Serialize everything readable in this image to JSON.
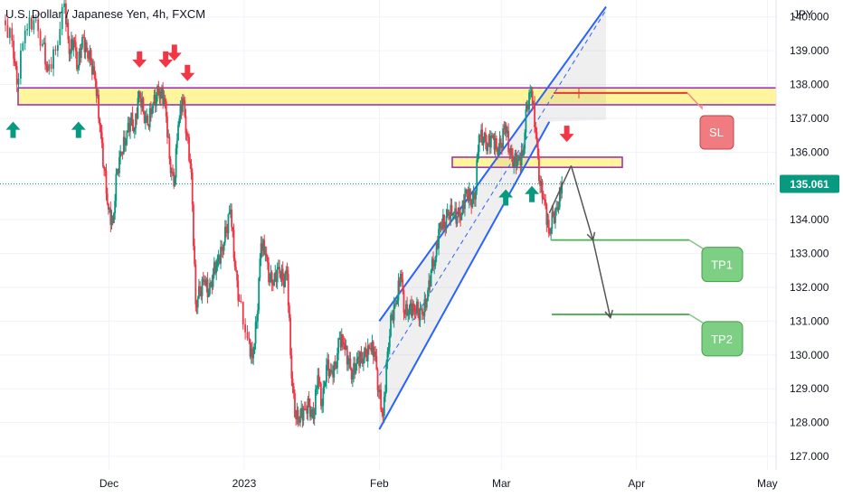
{
  "chart_data": {
    "type": "candlestick",
    "title": "U.S. Dollar / Japanese Yen, 4h, FXCM",
    "y_unit": "JPY",
    "ylim": [
      126.6,
      140.5
    ],
    "yticks": [
      "127.000",
      "128.000",
      "129.000",
      "130.000",
      "131.000",
      "132.000",
      "133.000",
      "134.000",
      "135.000",
      "136.000",
      "137.000",
      "138.000",
      "139.000",
      "140.000"
    ],
    "xlim": [
      "2022-11-06",
      "2023-05-03"
    ],
    "xticks": [
      {
        "date": "2022-12-01",
        "label": "Dec"
      },
      {
        "date": "2023-01-01",
        "label": "2023"
      },
      {
        "date": "2023-02-01",
        "label": "Feb"
      },
      {
        "date": "2023-03-01",
        "label": "Mar"
      },
      {
        "date": "2023-04-01",
        "label": "Apr"
      },
      {
        "date": "2023-05-01",
        "label": "May"
      }
    ],
    "last_price": "135.061",
    "colors": {
      "up": "#089981",
      "down": "#f23645",
      "channel": "#2962ff",
      "zone_fill": "#fff59d",
      "zone_border": "#9c27b0",
      "target": "#4caf50",
      "stop": "#e53935",
      "path": "#555555"
    },
    "price_path": [
      [
        "2022-11-07",
        139.9
      ],
      [
        "2022-11-09",
        139.3
      ],
      [
        "2022-11-10",
        138.0
      ],
      [
        "2022-11-12",
        139.6
      ],
      [
        "2022-11-14",
        139.9
      ],
      [
        "2022-11-16",
        139.2
      ],
      [
        "2022-11-17",
        138.4
      ],
      [
        "2022-11-19",
        139.0
      ],
      [
        "2022-11-21",
        140.4
      ],
      [
        "2022-11-22",
        138.9
      ],
      [
        "2022-11-23",
        139.3
      ],
      [
        "2022-11-24",
        138.5
      ],
      [
        "2022-11-25",
        139.4
      ],
      [
        "2022-11-26",
        139.0
      ],
      [
        "2022-11-27",
        138.7
      ],
      [
        "2022-11-28",
        138.1
      ],
      [
        "2022-11-29",
        136.8
      ],
      [
        "2022-11-30",
        135.5
      ],
      [
        "2022-12-01",
        134.3
      ],
      [
        "2022-12-02",
        133.9
      ],
      [
        "2022-12-03",
        135.5
      ],
      [
        "2022-12-04",
        136.0
      ],
      [
        "2022-12-05",
        136.4
      ],
      [
        "2022-12-06",
        137.0
      ],
      [
        "2022-12-07",
        136.7
      ],
      [
        "2022-12-08",
        137.8
      ],
      [
        "2022-12-09",
        137.2
      ],
      [
        "2022-12-10",
        136.8
      ],
      [
        "2022-12-11",
        137.3
      ],
      [
        "2022-12-12",
        137.7
      ],
      [
        "2022-12-13",
        137.8
      ],
      [
        "2022-12-14",
        137.5
      ],
      [
        "2022-12-15",
        135.8
      ],
      [
        "2022-12-16",
        135.0
      ],
      [
        "2022-12-17",
        136.8
      ],
      [
        "2022-12-18",
        137.6
      ],
      [
        "2022-12-19",
        136.5
      ],
      [
        "2022-12-20",
        135.4
      ],
      [
        "2022-12-21",
        131.5
      ],
      [
        "2022-12-22",
        131.9
      ],
      [
        "2022-12-23",
        132.2
      ],
      [
        "2022-12-24",
        131.8
      ],
      [
        "2022-12-25",
        132.4
      ],
      [
        "2022-12-26",
        132.8
      ],
      [
        "2022-12-27",
        133.1
      ],
      [
        "2022-12-28",
        133.7
      ],
      [
        "2022-12-29",
        134.3
      ],
      [
        "2022-12-30",
        132.6
      ],
      [
        "2022-12-31",
        131.6
      ],
      [
        "2023-01-02",
        130.5
      ],
      [
        "2023-01-03",
        129.9
      ],
      [
        "2023-01-04",
        131.0
      ],
      [
        "2023-01-05",
        133.3
      ],
      [
        "2023-01-06",
        133.0
      ],
      [
        "2023-01-07",
        132.2
      ],
      [
        "2023-01-08",
        132.2
      ],
      [
        "2023-01-09",
        132.6
      ],
      [
        "2023-01-10",
        132.2
      ],
      [
        "2023-01-11",
        132.4
      ],
      [
        "2023-01-12",
        129.3
      ],
      [
        "2023-01-13",
        128.1
      ],
      [
        "2023-01-14",
        128.2
      ],
      [
        "2023-01-15",
        128.4
      ],
      [
        "2023-01-16",
        128.5
      ],
      [
        "2023-01-17",
        128.1
      ],
      [
        "2023-01-18",
        129.4
      ],
      [
        "2023-01-19",
        128.5
      ],
      [
        "2023-01-20",
        129.7
      ],
      [
        "2023-01-21",
        129.5
      ],
      [
        "2023-01-22",
        129.6
      ],
      [
        "2023-01-23",
        130.5
      ],
      [
        "2023-01-24",
        130.3
      ],
      [
        "2023-01-25",
        129.8
      ],
      [
        "2023-01-26",
        129.4
      ],
      [
        "2023-01-27",
        129.9
      ],
      [
        "2023-01-28",
        129.9
      ],
      [
        "2023-01-29",
        130.0
      ],
      [
        "2023-01-30",
        130.2
      ],
      [
        "2023-01-31",
        130.1
      ],
      [
        "2023-02-01",
        128.9
      ],
      [
        "2023-02-02",
        128.2
      ],
      [
        "2023-02-03",
        130.1
      ],
      [
        "2023-02-04",
        131.2
      ],
      [
        "2023-02-05",
        131.5
      ],
      [
        "2023-02-06",
        132.4
      ],
      [
        "2023-02-07",
        131.2
      ],
      [
        "2023-02-08",
        131.4
      ],
      [
        "2023-02-09",
        131.4
      ],
      [
        "2023-02-10",
        131.3
      ],
      [
        "2023-02-11",
        131.2
      ],
      [
        "2023-02-12",
        131.6
      ],
      [
        "2023-02-13",
        132.5
      ],
      [
        "2023-02-14",
        132.9
      ],
      [
        "2023-02-15",
        133.9
      ],
      [
        "2023-02-16",
        133.9
      ],
      [
        "2023-02-17",
        134.2
      ],
      [
        "2023-02-18",
        134.2
      ],
      [
        "2023-02-19",
        134.1
      ],
      [
        "2023-02-20",
        134.2
      ],
      [
        "2023-02-21",
        134.9
      ],
      [
        "2023-02-22",
        134.6
      ],
      [
        "2023-02-23",
        134.6
      ],
      [
        "2023-02-24",
        136.5
      ],
      [
        "2023-02-25",
        136.4
      ],
      [
        "2023-02-26",
        136.2
      ],
      [
        "2023-02-27",
        136.5
      ],
      [
        "2023-02-28",
        136.1
      ],
      [
        "2023-03-01",
        136.2
      ],
      [
        "2023-03-02",
        136.8
      ],
      [
        "2023-03-03",
        136.0
      ],
      [
        "2023-03-04",
        135.7
      ],
      [
        "2023-03-05",
        135.8
      ],
      [
        "2023-03-06",
        135.9
      ],
      [
        "2023-03-07",
        137.4
      ],
      [
        "2023-03-08",
        137.8
      ],
      [
        "2023-03-09",
        136.6
      ],
      [
        "2023-03-10",
        135.0
      ],
      [
        "2023-03-11",
        134.6
      ],
      [
        "2023-03-12",
        133.6
      ],
      [
        "2023-03-13",
        134.1
      ],
      [
        "2023-03-14",
        134.3
      ],
      [
        "2023-03-15",
        135.1
      ]
    ]
  },
  "annotations": {
    "resistance_zone": {
      "from": 137.4,
      "to": 137.9
    },
    "retest_zone": {
      "from": 135.55,
      "to": 135.85
    },
    "channel": {
      "upper_from": [
        "2023-02-01",
        131.0
      ],
      "upper_to": [
        "2023-03-25",
        140.3
      ],
      "lower_from": [
        "2023-02-01",
        127.8
      ],
      "lower_to": [
        "2023-03-12",
        136.9
      ]
    },
    "stop_loss": {
      "label": "SL",
      "price": 137.75
    },
    "targets": [
      {
        "label": "TP1",
        "price": 133.4
      },
      {
        "label": "TP2",
        "price": 131.2
      }
    ],
    "projection": [
      [
        "2023-03-12",
        134.2
      ],
      [
        "2023-03-17",
        135.6
      ],
      [
        "2023-03-22",
        133.4
      ],
      [
        "2023-03-26",
        131.1
      ]
    ],
    "up_arrows": [
      [
        "2022-11-09",
        136.9
      ],
      [
        "2022-11-24",
        136.9
      ],
      [
        "2023-03-02",
        134.9
      ],
      [
        "2023-03-08",
        135.0
      ]
    ],
    "down_arrows": [
      [
        "2022-12-08",
        138.5
      ],
      [
        "2022-12-14",
        138.5
      ],
      [
        "2022-12-16",
        138.7
      ],
      [
        "2022-12-19",
        138.1
      ],
      [
        "2023-03-16",
        136.3
      ]
    ]
  }
}
